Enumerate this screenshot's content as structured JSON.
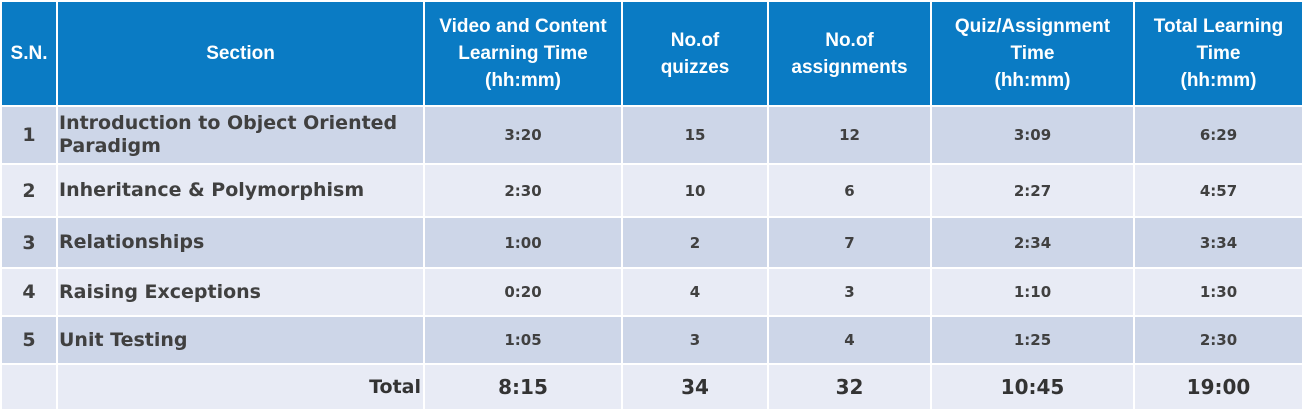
{
  "headers": {
    "sn": "S.N.",
    "section": "Section",
    "video": [
      "Video and Content",
      "Learning Time",
      "(hh:mm)"
    ],
    "quizzes": [
      "No.of",
      "quizzes"
    ],
    "assignments": [
      "No.of",
      "assignments"
    ],
    "quiz_time": [
      "Quiz/Assignment",
      "Time",
      "(hh:mm)"
    ],
    "total_time": [
      "Total Learning",
      "Time",
      "(hh:mm)"
    ]
  },
  "rows": [
    {
      "sn": "1",
      "section": "Introduction to Object Oriented Paradigm",
      "video": "3:20",
      "quizzes": "15",
      "assignments": "12",
      "quiz_time": "3:09",
      "total_time": "6:29"
    },
    {
      "sn": "2",
      "section": "Inheritance & Polymorphism",
      "video": "2:30",
      "quizzes": "10",
      "assignments": "6",
      "quiz_time": "2:27",
      "total_time": "4:57"
    },
    {
      "sn": "3",
      "section": "Relationships",
      "video": "1:00",
      "quizzes": "2",
      "assignments": "7",
      "quiz_time": "2:34",
      "total_time": "3:34"
    },
    {
      "sn": "4",
      "section": "Raising Exceptions",
      "video": "0:20",
      "quizzes": "4",
      "assignments": "3",
      "quiz_time": "1:10",
      "total_time": "1:30"
    },
    {
      "sn": "5",
      "section": "Unit Testing",
      "video": "1:05",
      "quizzes": "3",
      "assignments": "4",
      "quiz_time": "1:25",
      "total_time": "2:30"
    }
  ],
  "total": {
    "label": "Total",
    "video": "8:15",
    "quizzes": "34",
    "assignments": "32",
    "quiz_time": "10:45",
    "total_time": "19:00"
  }
}
